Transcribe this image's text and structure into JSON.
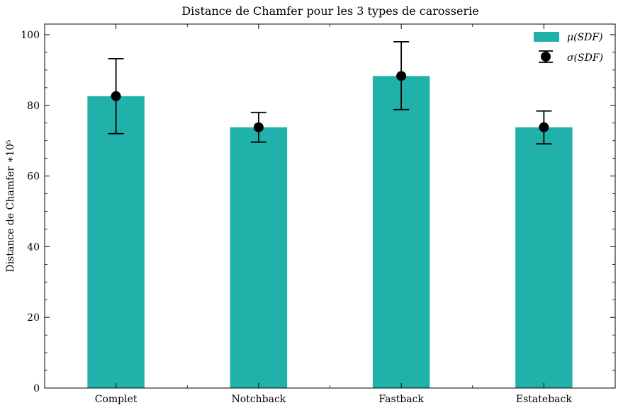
{
  "chart_data": {
    "type": "bar",
    "title": "Distance de Chamfer pour les 3 types de carosserie",
    "xlabel": "",
    "ylabel": "Distance de Chamfer ∗10⁵",
    "categories": [
      "Complet",
      "Notchback",
      "Fastback",
      "Estateback"
    ],
    "series": [
      {
        "name": "μ(SDF)",
        "values": [
          82.6,
          73.8,
          88.3,
          73.8
        ],
        "color": "#20b2aa"
      }
    ],
    "error_bars": {
      "name": "σ(SDF)",
      "center": [
        82.6,
        73.8,
        88.3,
        73.8
      ],
      "lower": [
        72.0,
        69.6,
        78.8,
        69.1
      ],
      "upper": [
        93.2,
        78.0,
        98.0,
        78.4
      ],
      "color": "#000000"
    },
    "ylim": [
      0,
      103
    ],
    "yticks": [
      0,
      20,
      40,
      60,
      80,
      100
    ],
    "grid": false,
    "legend_position": "top-right"
  }
}
